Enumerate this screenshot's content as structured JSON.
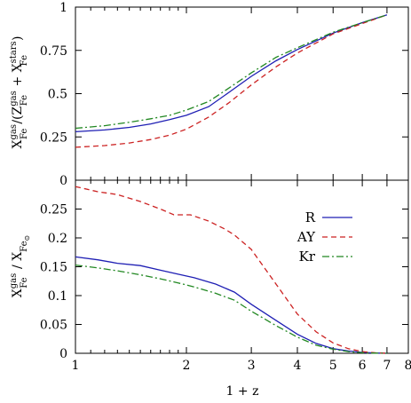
{
  "chart_data": [
    {
      "type": "line",
      "x_scale": "log",
      "xlim": [
        1,
        8
      ],
      "ylim": [
        0,
        1
      ],
      "xlabel": "1 + z",
      "ylabel": {
        "prefix": "X",
        "sup1": "gas",
        "sub1": "Fe",
        "mid": "/(Z",
        "sup2": "gas",
        "sub2": "Fe",
        "plus": " + X",
        "sup3": "stars",
        "sub3": "Fe",
        "end": ")"
      },
      "x_ticks": [
        "1",
        "2",
        "3",
        "4",
        "5",
        "6",
        "7",
        "8"
      ],
      "y_ticks": [
        "0",
        "0.25",
        "0.5",
        "0.75",
        "1"
      ],
      "series": [
        {
          "name": "R",
          "color": "#1f1fb4",
          "dash": "solid",
          "x": [
            1,
            1.2,
            1.4,
            1.6,
            1.8,
            2,
            2.3,
            2.6,
            3,
            3.5,
            4,
            5,
            6,
            7
          ],
          "y": [
            0.28,
            0.29,
            0.305,
            0.325,
            0.35,
            0.375,
            0.425,
            0.505,
            0.6,
            0.69,
            0.755,
            0.85,
            0.91,
            0.955
          ]
        },
        {
          "name": "AY",
          "color": "#cc2222",
          "dash": "6,4",
          "x": [
            1,
            1.2,
            1.4,
            1.6,
            1.8,
            2,
            2.3,
            2.6,
            3,
            3.5,
            4,
            5,
            6,
            7
          ],
          "y": [
            0.19,
            0.2,
            0.215,
            0.235,
            0.26,
            0.295,
            0.365,
            0.445,
            0.55,
            0.655,
            0.735,
            0.845,
            0.905,
            0.955
          ]
        },
        {
          "name": "Kr",
          "color": "#228822",
          "dash": "8,3,2,3",
          "x": [
            1,
            1.2,
            1.4,
            1.6,
            1.8,
            2,
            2.3,
            2.6,
            3,
            3.5,
            4,
            5,
            6,
            7
          ],
          "y": [
            0.3,
            0.315,
            0.335,
            0.355,
            0.375,
            0.405,
            0.455,
            0.53,
            0.62,
            0.71,
            0.765,
            0.855,
            0.91,
            0.955
          ]
        }
      ]
    },
    {
      "type": "line",
      "x_scale": "log",
      "xlim": [
        1,
        8
      ],
      "ylim": [
        0,
        0.3
      ],
      "xlabel": "1 + z",
      "ylabel": {
        "prefix": "X",
        "sup1": "gas",
        "sub1": "Fe",
        "mid": " / X",
        "sub2": "Fe",
        "sub2b": "⊙"
      },
      "x_ticks": [
        "1",
        "2",
        "3",
        "4",
        "5",
        "6",
        "7",
        "8"
      ],
      "y_ticks": [
        "0",
        "0.05",
        "0.1",
        "0.15",
        "0.2",
        "0.25"
      ],
      "legend": {
        "placement": "center-right"
      },
      "series": [
        {
          "name": "R",
          "color": "#1f1fb4",
          "dash": "solid",
          "x": [
            1,
            1.15,
            1.3,
            1.5,
            1.7,
            1.9,
            2.1,
            2.4,
            2.7,
            3,
            3.5,
            4,
            4.5,
            5,
            5.5,
            6,
            6.5,
            7
          ],
          "y": [
            0.167,
            0.162,
            0.156,
            0.152,
            0.144,
            0.137,
            0.131,
            0.12,
            0.106,
            0.085,
            0.057,
            0.033,
            0.017,
            0.008,
            0.004,
            0.0015,
            0.0005,
            0
          ]
        },
        {
          "name": "AY",
          "color": "#cc2222",
          "dash": "6,4",
          "x": [
            1,
            1.15,
            1.3,
            1.5,
            1.7,
            1.85,
            2.05,
            2.3,
            2.55,
            2.7,
            3,
            3.5,
            4,
            4.5,
            5,
            5.5,
            6,
            6.5,
            7
          ],
          "y": [
            0.289,
            0.28,
            0.275,
            0.263,
            0.25,
            0.24,
            0.24,
            0.229,
            0.215,
            0.205,
            0.18,
            0.12,
            0.068,
            0.037,
            0.018,
            0.008,
            0.003,
            0.001,
            0
          ]
        },
        {
          "name": "Kr",
          "color": "#228822",
          "dash": "8,3,2,3",
          "x": [
            1,
            1.15,
            1.3,
            1.5,
            1.7,
            1.9,
            2.1,
            2.4,
            2.7,
            3,
            3.5,
            4,
            4.5,
            5,
            5.5,
            6,
            6.5,
            7
          ],
          "y": [
            0.153,
            0.148,
            0.143,
            0.136,
            0.129,
            0.122,
            0.115,
            0.104,
            0.092,
            0.073,
            0.048,
            0.028,
            0.014,
            0.007,
            0.003,
            0.001,
            0.0003,
            0
          ]
        }
      ]
    }
  ]
}
